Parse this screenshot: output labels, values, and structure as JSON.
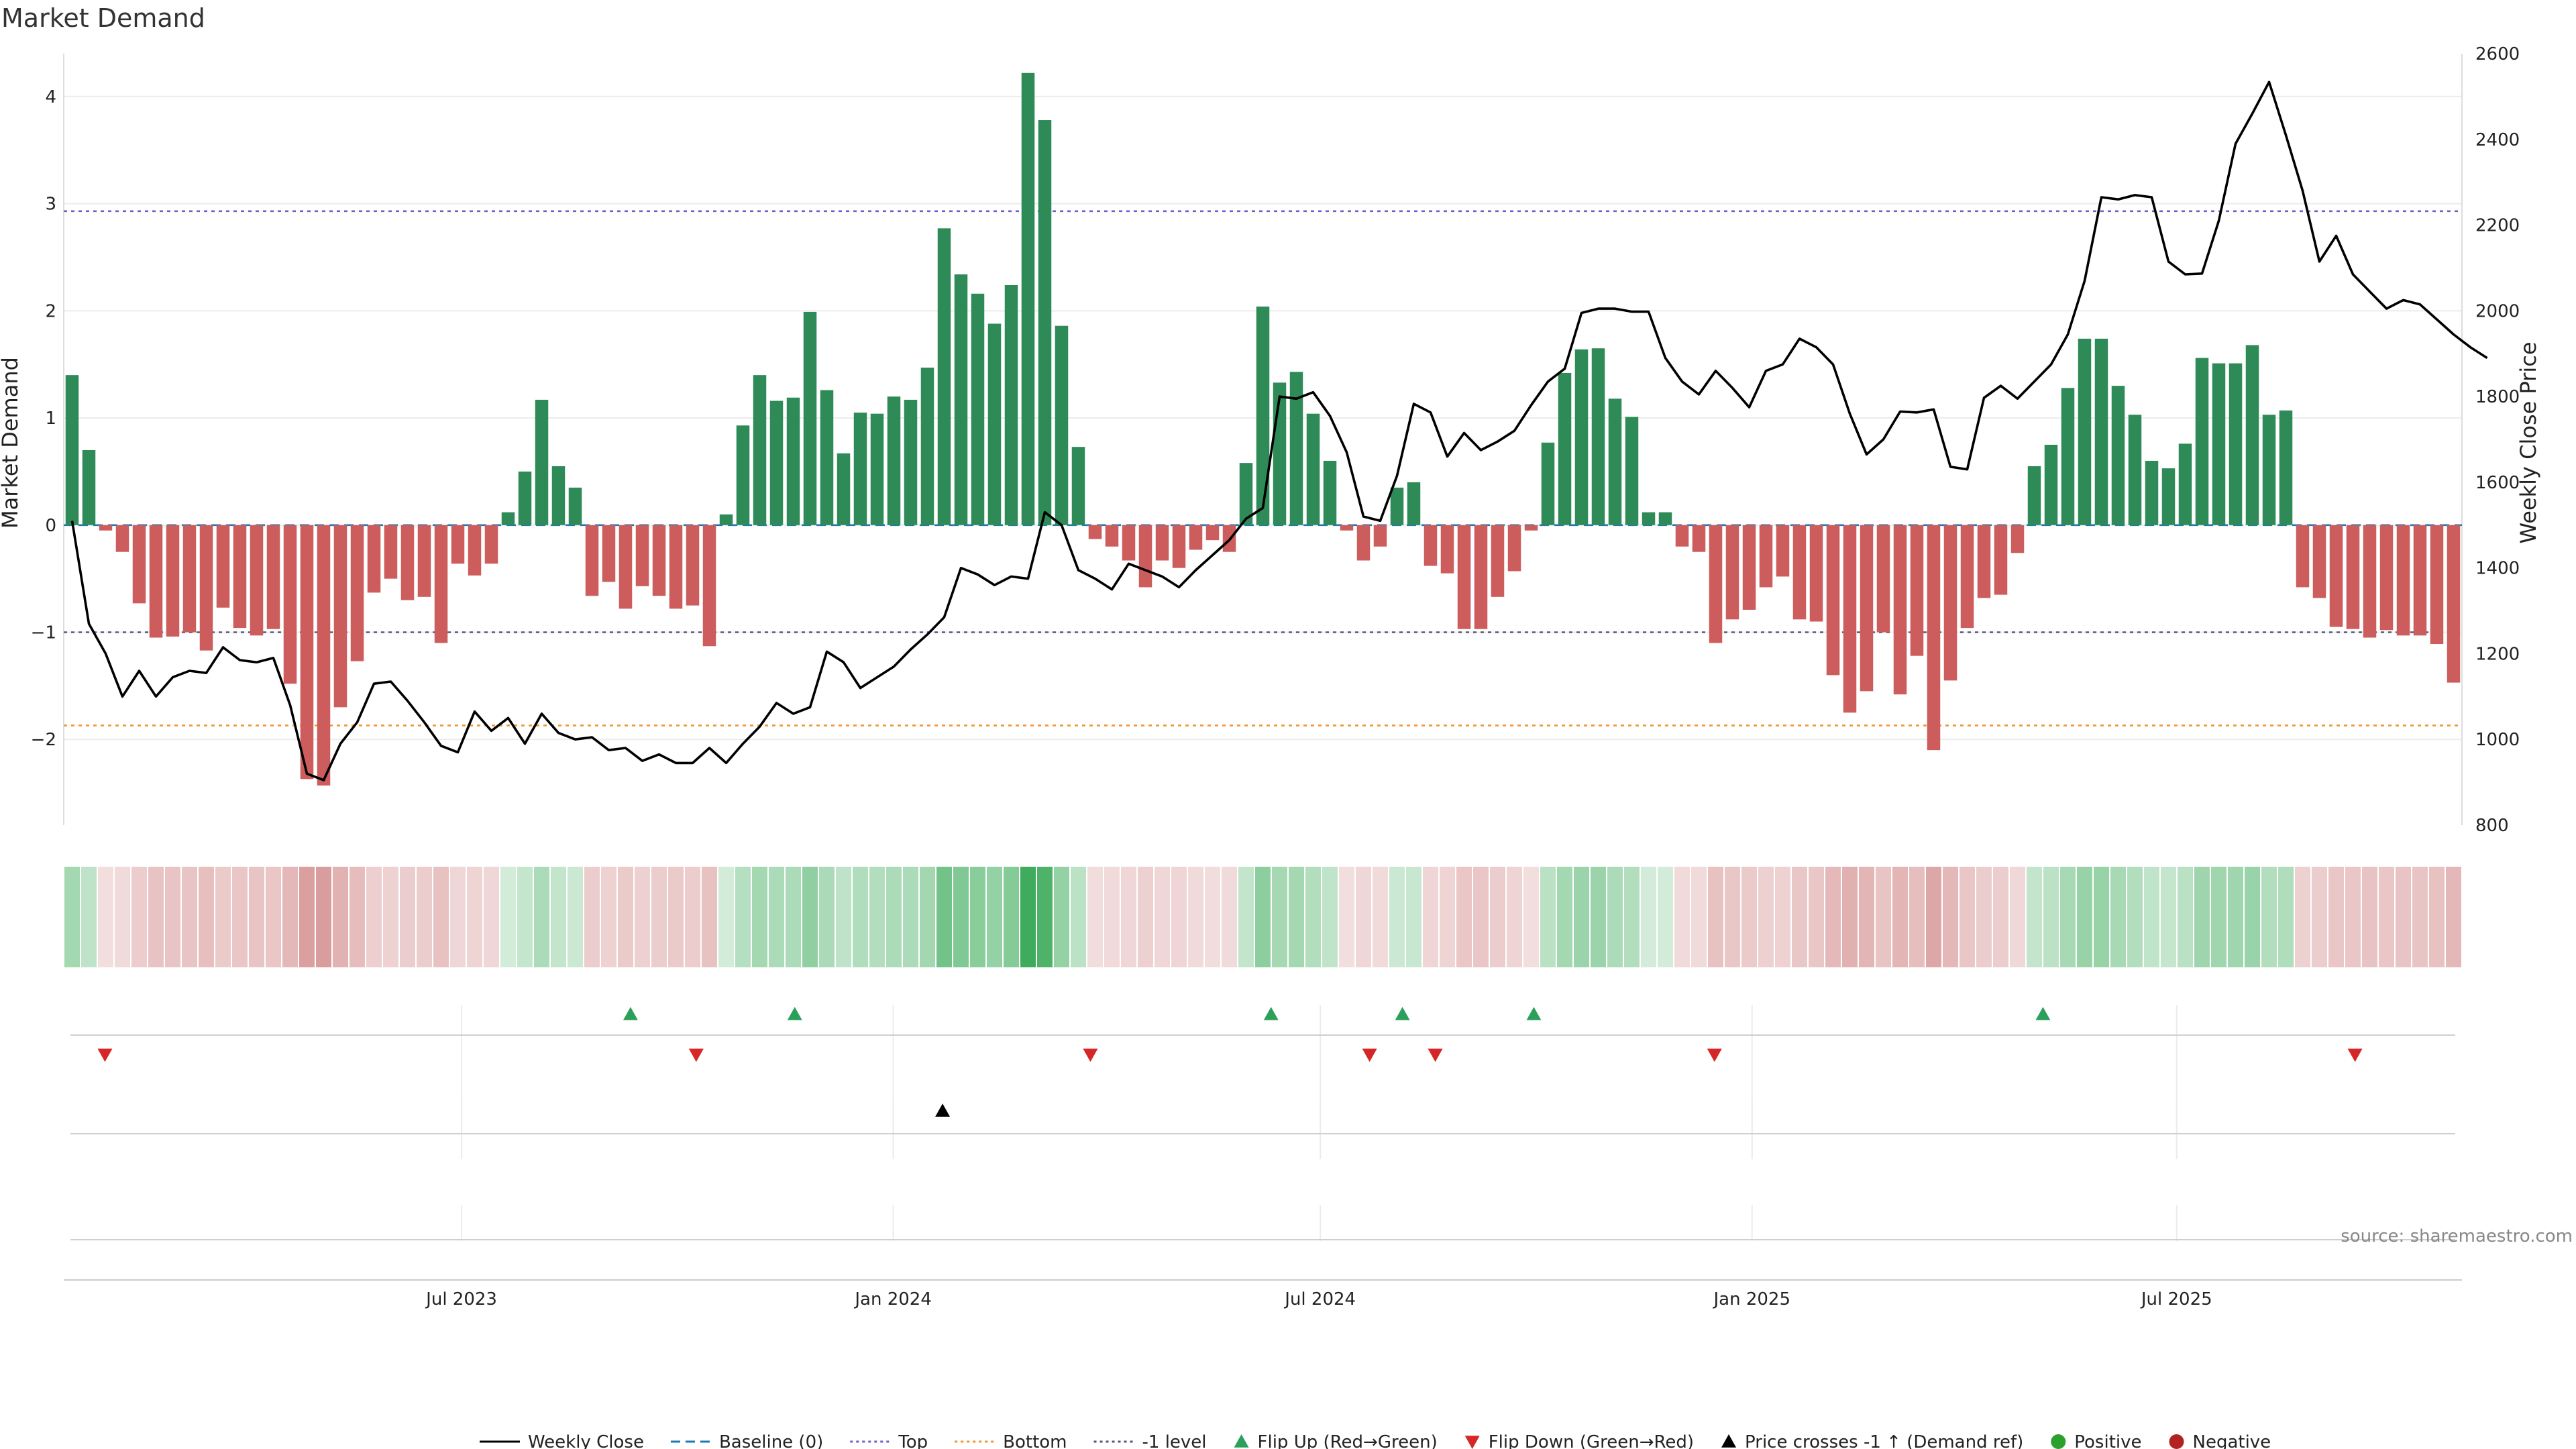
{
  "chart_data": {
    "type": "bar",
    "title": "Market Demand",
    "ylabel_left": "Market Demand",
    "ylabel_right": "Weekly Close Price",
    "ylim_left": [
      -2.8,
      4.4
    ],
    "ylim_right": [
      800,
      2600
    ],
    "yticks_left": [
      "4",
      "3",
      "2",
      "1",
      "0",
      "−1",
      "−2"
    ],
    "yticks_left_values": [
      4,
      3,
      2,
      1,
      0,
      -1,
      -2
    ],
    "yticks_right": [
      "2600",
      "2400",
      "2200",
      "2000",
      "1800",
      "1600",
      "1400",
      "1200",
      "1000",
      "800"
    ],
    "yticks_right_values": [
      2600,
      2400,
      2200,
      2000,
      1800,
      1600,
      1400,
      1200,
      1000,
      800
    ],
    "x_start": "2023-01-16",
    "x_end": "2025-10-27",
    "xticks": [
      {
        "date": "2023-07-01",
        "label": "Jul 2023"
      },
      {
        "date": "2024-01-01",
        "label": "Jan 2024"
      },
      {
        "date": "2024-07-01",
        "label": "Jul 2024"
      },
      {
        "date": "2025-01-01",
        "label": "Jan 2025"
      },
      {
        "date": "2025-07-01",
        "label": "Jul 2025"
      }
    ],
    "reference_lines": [
      {
        "name": "Top",
        "value": 2.93,
        "color": "#6b62c8"
      },
      {
        "name": "Bottom",
        "value": -1.87,
        "color": "#f0962d"
      },
      {
        "name": "-1 level",
        "value": -1.0,
        "color": "#555577"
      },
      {
        "name": "Baseline (0)",
        "value": 0,
        "color": "#1f77b4"
      }
    ],
    "demand": [
      1.4,
      0.7,
      -0.05,
      -0.25,
      -0.73,
      -1.05,
      -1.04,
      -1.0,
      -1.17,
      -0.77,
      -0.96,
      -1.03,
      -0.97,
      -1.48,
      -2.37,
      -2.43,
      -1.7,
      -1.27,
      -0.63,
      -0.5,
      -0.7,
      -0.67,
      -1.1,
      -0.36,
      -0.47,
      -0.36,
      0.12,
      0.5,
      1.17,
      0.55,
      0.35,
      -0.66,
      -0.53,
      -0.78,
      -0.57,
      -0.66,
      -0.78,
      -0.75,
      -1.13,
      0.1,
      0.93,
      1.4,
      1.16,
      1.19,
      1.99,
      1.26,
      0.67,
      1.05,
      1.04,
      1.2,
      1.17,
      1.47,
      2.77,
      2.34,
      2.16,
      1.88,
      2.24,
      4.22,
      3.78,
      1.86,
      0.73,
      -0.13,
      -0.2,
      -0.33,
      -0.58,
      -0.33,
      -0.4,
      -0.23,
      -0.14,
      -0.25,
      0.58,
      2.04,
      1.33,
      1.43,
      1.04,
      0.6,
      -0.05,
      -0.33,
      -0.2,
      0.35,
      0.4,
      -0.38,
      -0.45,
      -0.97,
      -0.97,
      -0.67,
      -0.43,
      -0.05,
      0.77,
      1.42,
      1.64,
      1.65,
      1.18,
      1.01,
      0.12,
      0.12,
      -0.2,
      -0.25,
      -1.1,
      -0.88,
      -0.79,
      -0.58,
      -0.48,
      -0.88,
      -0.9,
      -1.4,
      -1.75,
      -1.55,
      -1.0,
      -1.58,
      -1.22,
      -2.1,
      -1.45,
      -0.96,
      -0.68,
      -0.65,
      -0.26,
      0.55,
      0.75,
      1.28,
      1.74,
      1.74,
      1.3,
      1.03,
      0.6,
      0.53,
      0.76,
      1.56,
      1.51,
      1.51,
      1.68,
      1.03,
      1.07,
      -0.58,
      -0.68,
      -0.95,
      -0.97,
      -1.05,
      -0.98,
      -1.03,
      -1.03,
      -1.11,
      -1.47
    ],
    "weekly_close": [
      1510,
      1270,
      1200,
      1100,
      1160,
      1100,
      1145,
      1160,
      1155,
      1215,
      1185,
      1180,
      1190,
      1080,
      920,
      905,
      990,
      1040,
      1130,
      1135,
      1090,
      1040,
      985,
      970,
      1065,
      1020,
      1050,
      990,
      1060,
      1015,
      1000,
      1005,
      975,
      980,
      950,
      965,
      945,
      945,
      980,
      945,
      990,
      1030,
      1085,
      1060,
      1075,
      1205,
      1180,
      1120,
      1145,
      1170,
      1210,
      1245,
      1285,
      1400,
      1385,
      1360,
      1380,
      1375,
      1530,
      1500,
      1395,
      1375,
      1350,
      1410,
      1395,
      1380,
      1355,
      1395,
      1430,
      1465,
      1515,
      1540,
      1800,
      1795,
      1810,
      1755,
      1670,
      1520,
      1510,
      1615,
      1783,
      1763,
      1660,
      1715,
      1675,
      1695,
      1720,
      1780,
      1835,
      1865,
      1995,
      2005,
      2005,
      1998,
      1998,
      1890,
      1835,
      1805,
      1860,
      1820,
      1775,
      1860,
      1875,
      1935,
      1915,
      1875,
      1760,
      1665,
      1700,
      1765,
      1763,
      1770,
      1636,
      1630,
      1797,
      1825,
      1795,
      1835,
      1875,
      1945,
      2070,
      2265,
      2260,
      2270,
      2265,
      2115,
      2085,
      2087,
      2210,
      2390,
      2460,
      2534,
      2410,
      2280,
      2115,
      2175,
      2085,
      2045,
      2005,
      2025,
      2015,
      1980,
      1945,
      1915,
      1890
    ],
    "flip_up": [
      "2023-09-11",
      "2023-11-20",
      "2024-06-10",
      "2024-08-05",
      "2024-09-30",
      "2025-05-05"
    ],
    "flip_down": [
      "2023-01-30",
      "2023-10-09",
      "2024-03-25",
      "2024-07-22",
      "2024-08-19",
      "2024-12-16",
      "2025-09-15"
    ],
    "price_crosses": [
      "2024-01-22"
    ],
    "source": "source: sharemaestro.com",
    "legend": [
      {
        "label": "Weekly Close",
        "kind": "line",
        "color": "#000000",
        "dash": ""
      },
      {
        "label": "Baseline (0)",
        "kind": "line",
        "color": "#1f77b4",
        "dash": "14,8"
      },
      {
        "label": "Top",
        "kind": "line",
        "color": "#6b62c8",
        "dash": "4,5"
      },
      {
        "label": "Bottom",
        "kind": "line",
        "color": "#f0962d",
        "dash": "4,5"
      },
      {
        "label": "-1 level",
        "kind": "line",
        "color": "#555577",
        "dash": "4,5"
      },
      {
        "label": "Flip Up (Red→Green)",
        "kind": "tri-up",
        "color": "#2ca05a"
      },
      {
        "label": "Flip Down (Green→Red)",
        "kind": "tri-down",
        "color": "#d62728"
      },
      {
        "label": "Price crosses -1 ↑ (Demand ref)",
        "kind": "tri-up",
        "color": "#000000"
      },
      {
        "label": "Positive",
        "kind": "dot",
        "color": "#2ca02c"
      },
      {
        "label": "Negative",
        "kind": "dot",
        "color": "#b22222"
      }
    ]
  },
  "colors": {
    "positive_bar": "#2e8b57",
    "negative_bar": "#cd5c5c",
    "line": "#000000",
    "heat_positive": "#34a853",
    "heat_negative": "#c56464"
  }
}
